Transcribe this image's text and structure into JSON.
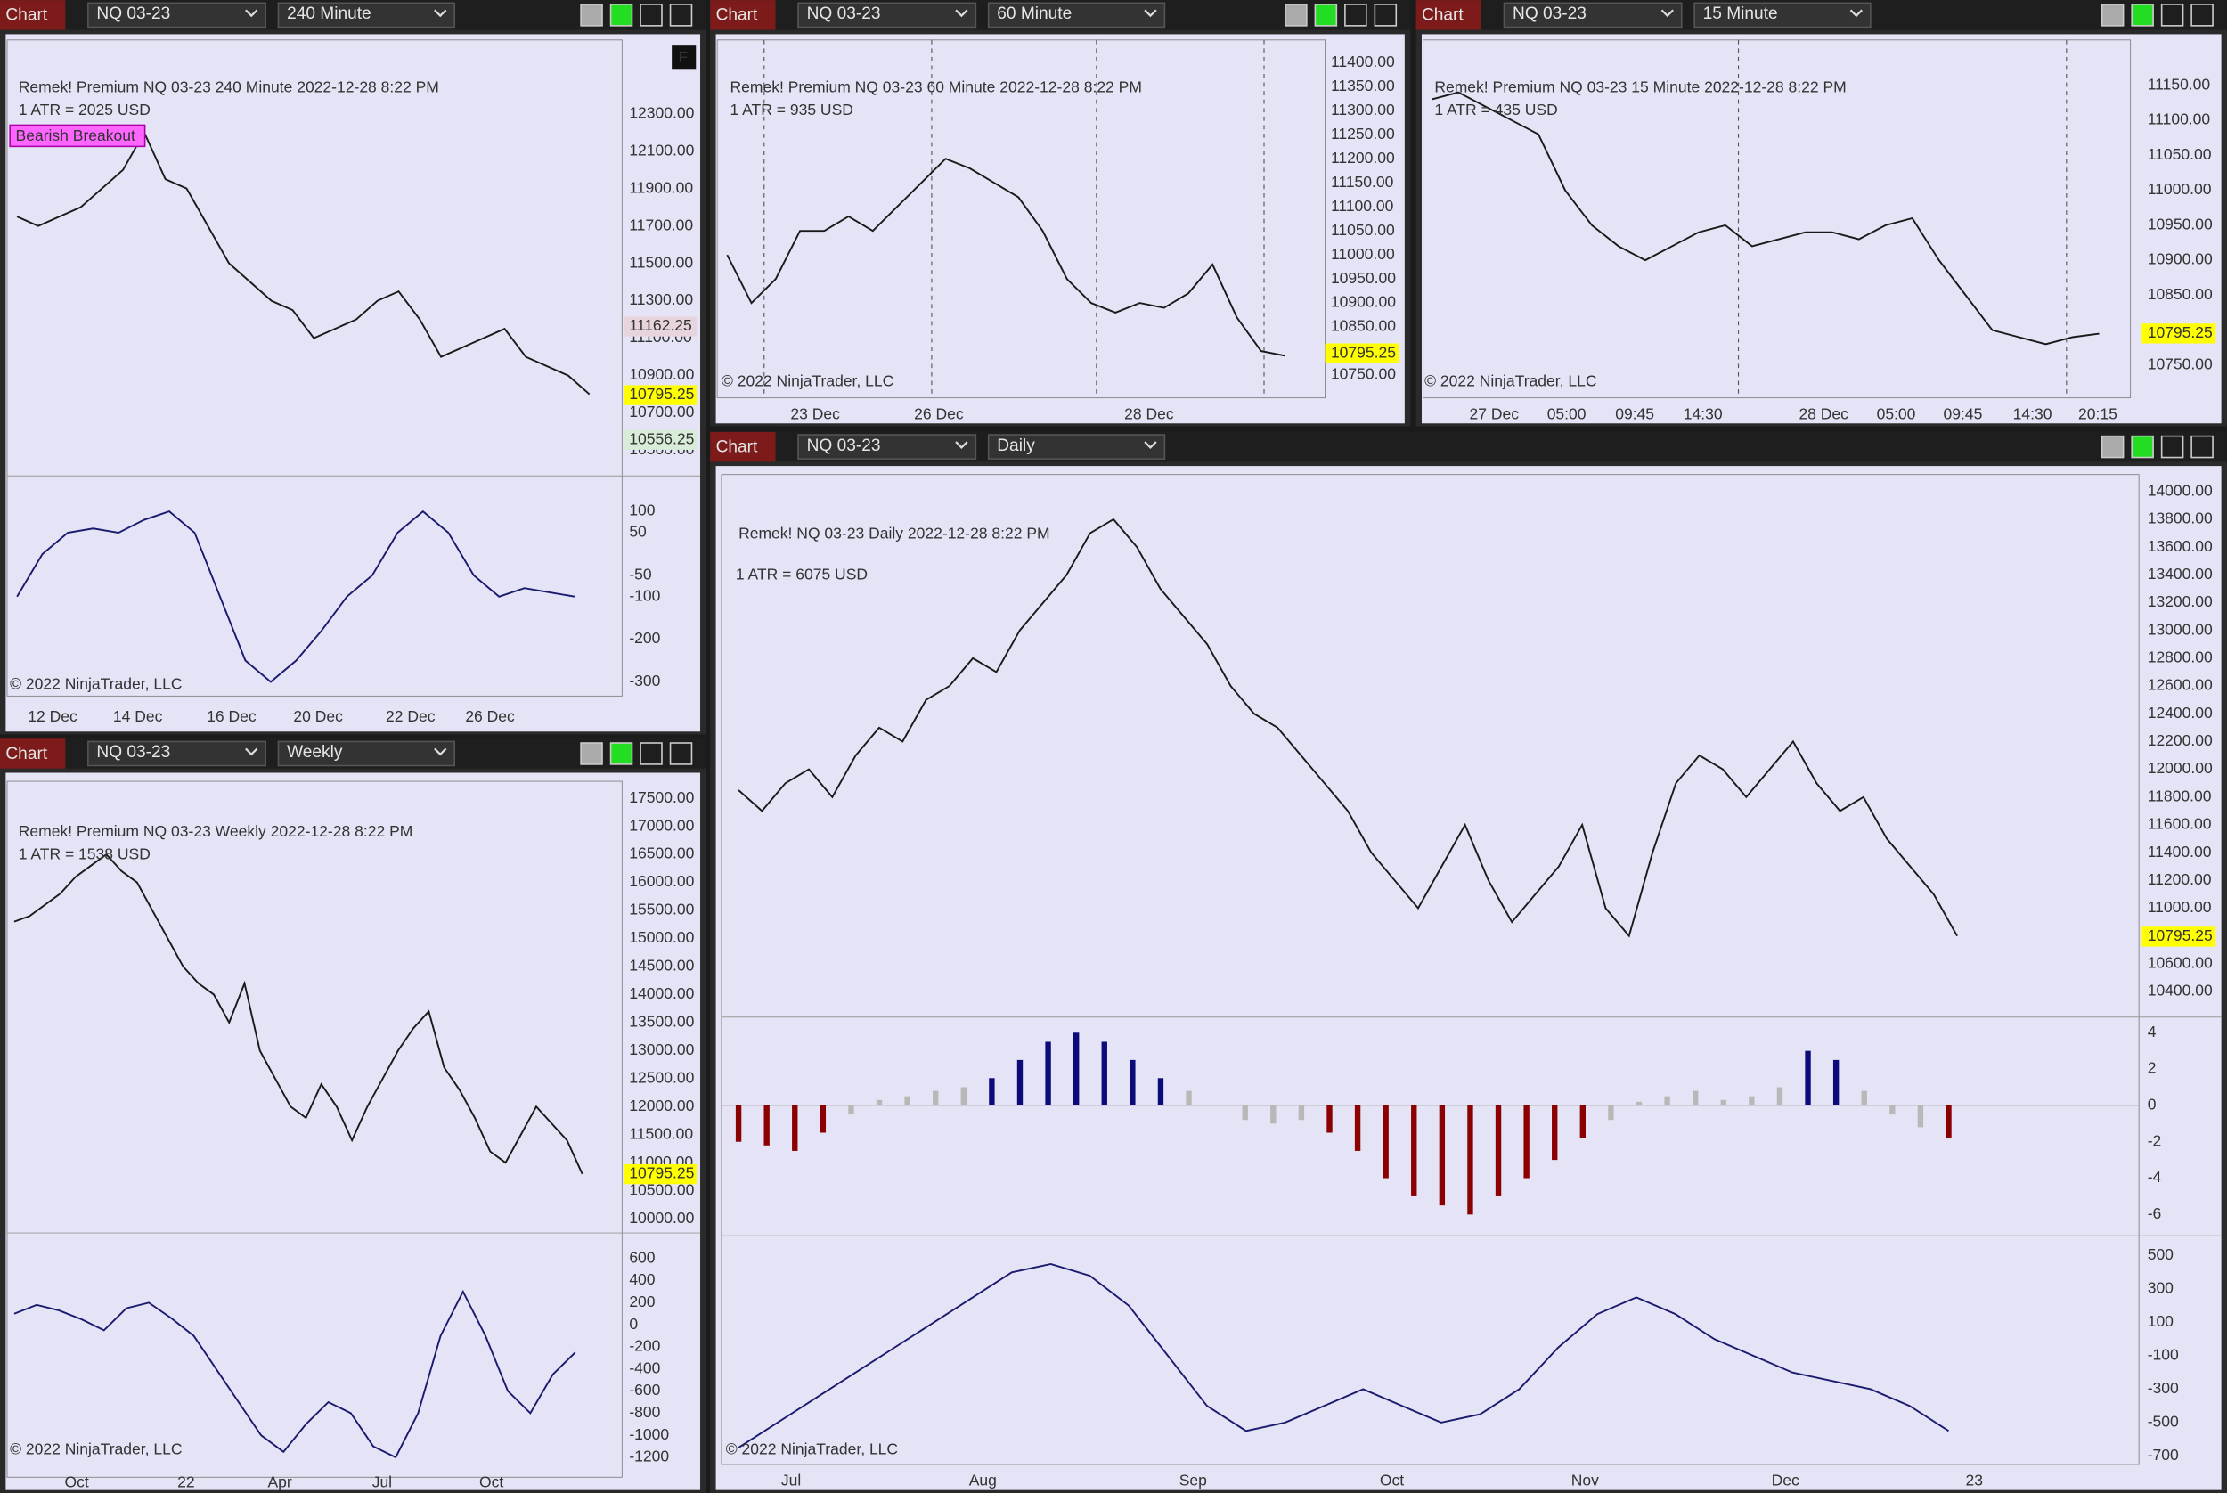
{
  "panels": [
    {
      "tab": "Chart",
      "instrument": "NQ 03-23",
      "timeframe": "240 Minute",
      "title": "Remek!  Premium  NQ 03-23  240 Minute  2022-12-28 8:22 PM",
      "atr": "1 ATR = 2025 USD",
      "badge": "Bearish Breakout",
      "flag": "F",
      "price_ticks": [
        "12300.00",
        "12100.00",
        "11900.00",
        "11700.00",
        "11500.00",
        "11300.00",
        "11100.00",
        "10900.00",
        "10700.00",
        "10500.00"
      ],
      "price_labels": [
        {
          "text": "11162.25",
          "bg": "#e8d4dc",
          "fg": "#b22222"
        },
        {
          "text": "10795.25",
          "bg": "#ffff00",
          "fg": "#000000"
        },
        {
          "text": "10556.25",
          "bg": "#d8ecd8",
          "fg": "#2e8b57"
        }
      ],
      "osc_ticks": [
        "100",
        "50",
        "-50",
        "-100",
        "-200",
        "-300"
      ],
      "x_labels": [
        "12 Dec",
        "14 Dec",
        "16 Dec",
        "20 Dec",
        "22 Dec",
        "26 Dec"
      ],
      "copyright": "© 2022 NinjaTrader, LLC",
      "close": [
        11750,
        11700,
        11750,
        11800,
        11900,
        12000,
        12200,
        11950,
        11900,
        11700,
        11500,
        11400,
        11300,
        11250,
        11100,
        11150,
        11200,
        11300,
        11350,
        11200,
        11000,
        11050,
        11100,
        11150,
        11000,
        10950,
        10900,
        10800
      ],
      "osc": [
        -100,
        0,
        50,
        60,
        50,
        80,
        100,
        50,
        -100,
        -250,
        -300,
        -250,
        -180,
        -100,
        -50,
        50,
        100,
        50,
        -50,
        -100,
        -80,
        -90,
        -100
      ]
    },
    {
      "tab": "Chart",
      "instrument": "NQ 03-23",
      "timeframe": "60 Minute",
      "title": "Remek!  Premium  NQ 03-23  60 Minute  2022-12-28 8:22 PM",
      "atr": "1 ATR = 935 USD",
      "price_ticks": [
        "11400.00",
        "11350.00",
        "11300.00",
        "11250.00",
        "11200.00",
        "11150.00",
        "11100.00",
        "11050.00",
        "11000.00",
        "10950.00",
        "10900.00",
        "10850.00",
        "10800.00",
        "10750.00"
      ],
      "price_labels": [
        {
          "text": "10795.25",
          "bg": "#ffff00",
          "fg": "#000000"
        }
      ],
      "x_labels": [
        "23 Dec",
        "26 Dec",
        "28 Dec"
      ],
      "copyright": "© 2022 NinjaTrader, LLC",
      "close": [
        11000,
        10900,
        10950,
        11050,
        11050,
        11080,
        11050,
        11100,
        11150,
        11200,
        11180,
        11150,
        11120,
        11050,
        10950,
        10900,
        10880,
        10900,
        10890,
        10920,
        10980,
        10870,
        10800,
        10790
      ]
    },
    {
      "tab": "Chart",
      "instrument": "NQ 03-23",
      "timeframe": "15 Minute",
      "title": "Remek!  Premium  NQ 03-23  15 Minute  2022-12-28 8:22 PM",
      "atr": "1 ATR = 435 USD",
      "price_ticks": [
        "11150.00",
        "11100.00",
        "11050.00",
        "11000.00",
        "10950.00",
        "10900.00",
        "10850.00",
        "10800.00",
        "10750.00"
      ],
      "price_labels": [
        {
          "text": "10795.25",
          "bg": "#ffff00",
          "fg": "#000000"
        }
      ],
      "x_labels": [
        "27 Dec",
        "05:00",
        "09:45",
        "14:30",
        "28 Dec",
        "05:00",
        "09:45",
        "14:30",
        "20:15"
      ],
      "copyright": "© 2022 NinjaTrader, LLC",
      "close": [
        11130,
        11140,
        11120,
        11100,
        11080,
        11000,
        10950,
        10920,
        10900,
        10920,
        10940,
        10950,
        10920,
        10930,
        10940,
        10940,
        10930,
        10950,
        10960,
        10900,
        10850,
        10800,
        10790,
        10780,
        10790,
        10795
      ]
    },
    {
      "tab": "Chart",
      "instrument": "NQ 03-23",
      "timeframe": "Weekly",
      "title": "Remek!  Premium  NQ 03-23  Weekly  2022-12-28 8:22 PM",
      "atr": "1 ATR = 1538 USD",
      "price_ticks": [
        "17500.00",
        "17000.00",
        "16500.00",
        "16000.00",
        "15500.00",
        "15000.00",
        "14500.00",
        "14000.00",
        "13500.00",
        "13000.00",
        "12500.00",
        "12000.00",
        "11500.00",
        "11000.00",
        "10500.00",
        "10000.00"
      ],
      "price_labels": [
        {
          "text": "10795.25",
          "bg": "#ffff00",
          "fg": "#000000"
        }
      ],
      "osc_ticks": [
        "600",
        "400",
        "200",
        "0",
        "-200",
        "-400",
        "-600",
        "-800",
        "-1000",
        "-1200"
      ],
      "x_labels": [
        "Oct",
        "22",
        "Apr",
        "Jul",
        "Oct"
      ],
      "copyright": "© 2022 NinjaTrader, LLC",
      "close": [
        15300,
        15400,
        15600,
        15800,
        16100,
        16300,
        16500,
        16200,
        16000,
        15500,
        15000,
        14500,
        14200,
        14000,
        13500,
        14200,
        13000,
        12500,
        12000,
        11800,
        12400,
        12000,
        11400,
        12000,
        12500,
        13000,
        13400,
        13700,
        12700,
        12300,
        11800,
        11200,
        11000,
        11500,
        12000,
        11700,
        11400,
        10800
      ],
      "osc": [
        100,
        180,
        130,
        50,
        -50,
        150,
        200,
        60,
        -100,
        -400,
        -700,
        -1000,
        -1150,
        -900,
        -700,
        -800,
        -1100,
        -1200,
        -800,
        -100,
        300,
        -100,
        -600,
        -800,
        -450,
        -250
      ]
    },
    {
      "tab": "Chart",
      "instrument": "NQ 03-23",
      "timeframe": "Daily",
      "title": "Remek!  NQ 03-23  Daily  2022-12-28 8:22 PM",
      "atr": "1 ATR = 6075 USD",
      "price_ticks": [
        "14000.00",
        "13800.00",
        "13600.00",
        "13400.00",
        "13200.00",
        "13000.00",
        "12800.00",
        "12600.00",
        "12400.00",
        "12200.00",
        "12000.00",
        "11800.00",
        "11600.00",
        "11400.00",
        "11200.00",
        "11000.00",
        "10800.00",
        "10600.00",
        "10400.00"
      ],
      "price_labels": [
        {
          "text": "10795.25",
          "bg": "#ffff00",
          "fg": "#000000"
        }
      ],
      "macd_ticks": [
        "4",
        "2",
        "0",
        "-2",
        "-4",
        "-6"
      ],
      "osc_ticks": [
        "500",
        "300",
        "100",
        "-100",
        "-300",
        "-500",
        "-700"
      ],
      "x_labels": [
        "Jul",
        "Aug",
        "Sep",
        "Oct",
        "Nov",
        "Dec",
        "23"
      ],
      "copyright": "© 2022 NinjaTrader, LLC",
      "close": [
        11850,
        11700,
        11900,
        12000,
        11800,
        12100,
        12300,
        12200,
        12500,
        12600,
        12800,
        12700,
        13000,
        13200,
        13400,
        13700,
        13800,
        13600,
        13300,
        13100,
        12900,
        12600,
        12400,
        12300,
        12100,
        11900,
        11700,
        11400,
        11200,
        11000,
        11300,
        11600,
        11200,
        10900,
        11100,
        11300,
        11600,
        11000,
        10800,
        11400,
        11900,
        12100,
        12000,
        11800,
        12000,
        12200,
        11900,
        11700,
        11800,
        11500,
        11300,
        11100,
        10800
      ],
      "macd": [
        -2,
        -2.2,
        -2.5,
        -1.5,
        -0.5,
        0.3,
        0.5,
        0.8,
        1,
        1.5,
        2.5,
        3.5,
        4,
        3.5,
        2.5,
        1.5,
        0.8,
        0,
        -0.8,
        -1,
        -0.8,
        -1.5,
        -2.5,
        -4,
        -5,
        -5.5,
        -6,
        -5,
        -4,
        -3,
        -1.8,
        -0.8,
        0.2,
        0.5,
        0.8,
        0.3,
        0.5,
        1,
        3,
        2.5,
        0.8,
        -0.5,
        -1.2,
        -1.8
      ],
      "osc": [
        -650,
        -500,
        -350,
        -200,
        -50,
        100,
        250,
        400,
        450,
        380,
        200,
        -100,
        -400,
        -550,
        -500,
        -400,
        -300,
        -400,
        -500,
        -450,
        -300,
        -50,
        150,
        250,
        150,
        0,
        -100,
        -200,
        -250,
        -300,
        -400,
        -550
      ]
    }
  ]
}
